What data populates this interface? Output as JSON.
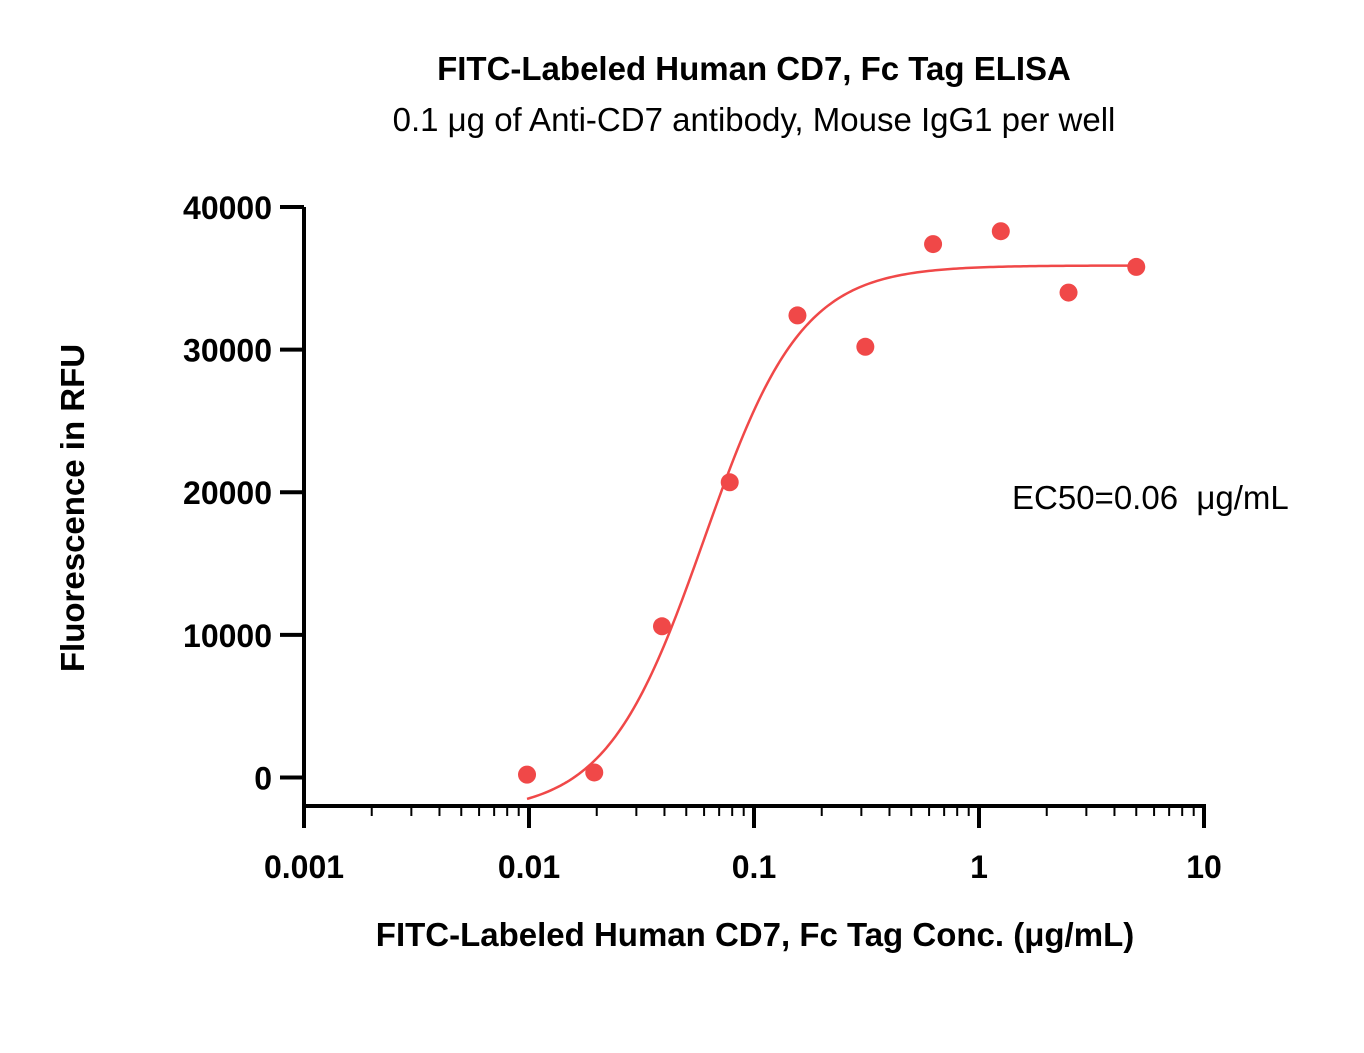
{
  "chart_data": {
    "type": "scatter",
    "title": "FITC-Labeled Human CD7, Fc Tag ELISA",
    "subtitle": "0.1 μg of Anti-CD7 antibody, Mouse IgG1 per well",
    "xlabel": "FITC-Labeled Human CD7, Fc Tag Conc. (μg/mL)",
    "ylabel": "Fluorescence in RFU",
    "x_scale": "log",
    "xlim": [
      0.001,
      10
    ],
    "ylim": [
      -2000,
      40000
    ],
    "x_ticks": [
      0.001,
      0.01,
      0.1,
      1,
      10
    ],
    "x_tick_labels": [
      "0.001",
      "0.01",
      "0.1",
      "1",
      "10"
    ],
    "y_ticks": [
      0,
      10000,
      20000,
      30000,
      40000
    ],
    "y_tick_labels": [
      "0",
      "10000",
      "20000",
      "30000",
      "40000"
    ],
    "grid": false,
    "legend": "none",
    "annotation": "EC50=0.06  μg/mL",
    "color": "#F04848",
    "series": [
      {
        "points": [
          {
            "x": 0.0098,
            "y": 200
          },
          {
            "x": 0.0195,
            "y": 350
          },
          {
            "x": 0.039,
            "y": 10600
          },
          {
            "x": 0.078,
            "y": 20700
          },
          {
            "x": 0.156,
            "y": 32400
          },
          {
            "x": 0.3125,
            "y": 30200
          },
          {
            "x": 0.625,
            "y": 37400
          },
          {
            "x": 1.25,
            "y": 38300
          },
          {
            "x": 2.5,
            "y": 34000
          },
          {
            "x": 5,
            "y": 35800
          }
        ],
        "fit": {
          "model": "4PL",
          "bottom": -2500,
          "top": 35900,
          "ec50": 0.06,
          "hill": 2.0,
          "x_range": [
            0.0098,
            5
          ]
        }
      }
    ]
  }
}
